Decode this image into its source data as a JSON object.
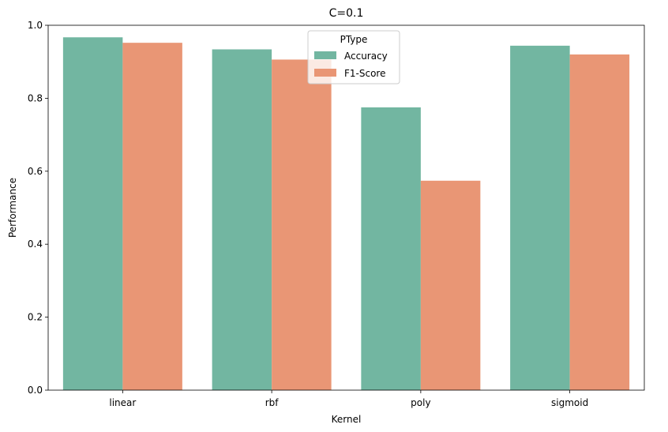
{
  "chart_data": {
    "type": "bar",
    "title": "C=0.1",
    "xlabel": "Kernel",
    "ylabel": "Performance",
    "categories": [
      "linear",
      "rbf",
      "poly",
      "sigmoid"
    ],
    "ylim": [
      0,
      1.0
    ],
    "yticks": [
      "0.0",
      "0.2",
      "0.4",
      "0.6",
      "0.8",
      "1.0"
    ],
    "legend": {
      "title": "PType",
      "placement": "upper-center"
    },
    "series": [
      {
        "name": "Accuracy",
        "color": "#72b6a1",
        "values": [
          0.967,
          0.934,
          0.775,
          0.944
        ]
      },
      {
        "name": "F1-Score",
        "color": "#e99675",
        "values": [
          0.952,
          0.906,
          0.574,
          0.92
        ]
      }
    ],
    "grid": false
  }
}
